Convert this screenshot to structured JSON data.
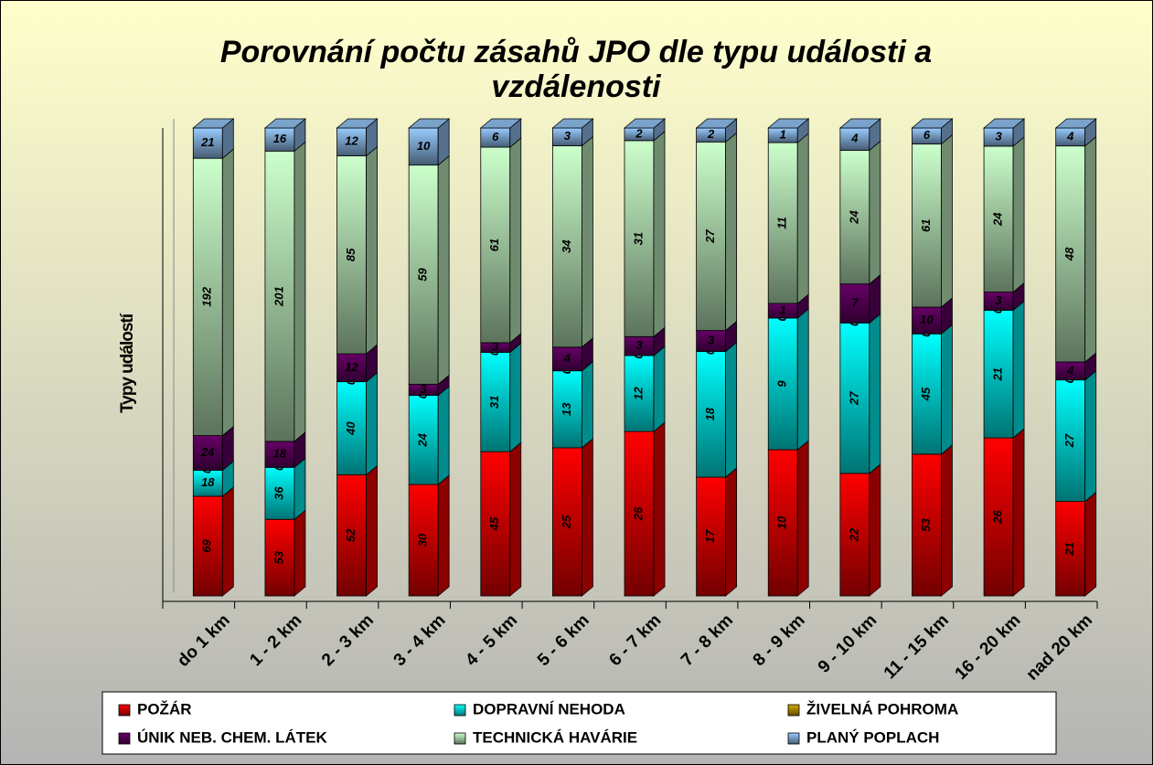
{
  "chart_data": {
    "type": "bar",
    "stacking": "percent",
    "title": "Porovnání počtu zásahů JPO dle typu události a vzdálenosti",
    "y_label": "Typy událostí",
    "categories": [
      "do 1 km",
      "1 - 2 km",
      "2 - 3 km",
      "3 - 4 km",
      "4 - 5 km",
      "5 - 6 km",
      "6 - 7 km",
      "7 - 8 km",
      "8 - 9 km",
      "9 - 10 km",
      "11 - 15 km",
      "16 - 20 km",
      "nad 20 km"
    ],
    "series": [
      {
        "name": "POŽÁR",
        "color": "#ff0000",
        "values": [
          69,
          53,
          52,
          30,
          45,
          25,
          26,
          17,
          10,
          22,
          53,
          26,
          21
        ]
      },
      {
        "name": "DOPRAVNÍ NEHODA",
        "color": "#00ffff",
        "values": [
          18,
          36,
          40,
          24,
          31,
          13,
          12,
          18,
          9,
          27,
          45,
          21,
          27
        ]
      },
      {
        "name": "ŽIVELNÁ POHROMA",
        "color": "#d4a800",
        "values": [
          0,
          0,
          0,
          0,
          0,
          0,
          0,
          0,
          0,
          0,
          0,
          0,
          0
        ]
      },
      {
        "name": "ÚNIK  NEB. CHEM. LÁTEK",
        "color": "#660066",
        "values": [
          24,
          18,
          12,
          3,
          3,
          4,
          3,
          3,
          1,
          7,
          10,
          3,
          4
        ]
      },
      {
        "name": "TECHNICKÁ HAVÁRIE",
        "color": "#ccffcc",
        "values": [
          192,
          201,
          85,
          59,
          61,
          34,
          31,
          27,
          11,
          24,
          61,
          24,
          48
        ]
      },
      {
        "name": "PLANÝ POPLACH",
        "color": "#99ccff",
        "values": [
          21,
          16,
          12,
          10,
          6,
          3,
          2,
          2,
          1,
          4,
          6,
          3,
          4
        ]
      }
    ],
    "legend": "bottom"
  }
}
